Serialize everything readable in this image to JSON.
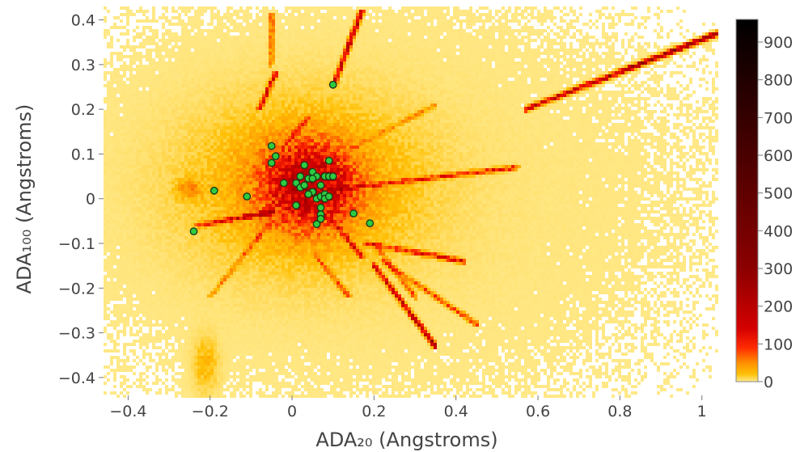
{
  "chart_data": {
    "type": "heatmap",
    "subtype": "2d-density-histogram-with-scatter-overlay",
    "title": "",
    "xlabel": "ADA₂₀ (Angstroms)",
    "ylabel": "ADA₁₀₀ (Angstroms)",
    "xlim": [
      -0.46,
      1.04
    ],
    "ylim": [
      -0.44,
      0.43
    ],
    "x_ticks": [
      -0.4,
      -0.2,
      0,
      0.2,
      0.4,
      0.6,
      0.8,
      1
    ],
    "x_tick_labels": [
      "−0.4",
      "−0.2",
      "0",
      "0.2",
      "0.4",
      "0.6",
      "0.8",
      "1"
    ],
    "y_ticks": [
      -0.4,
      -0.3,
      -0.2,
      -0.1,
      0,
      0.1,
      0.2,
      0.3,
      0.4
    ],
    "y_tick_labels": [
      "−0.4",
      "−0.3",
      "−0.2",
      "−0.1",
      "0",
      "0.1",
      "0.2",
      "0.3",
      "0.4"
    ],
    "grid": false,
    "colorbar": {
      "range": [
        0,
        960
      ],
      "ticks": [
        0,
        100,
        200,
        300,
        400,
        500,
        600,
        700,
        800,
        900
      ],
      "tick_labels": [
        "0",
        "100",
        "200",
        "300",
        "400",
        "500",
        "600",
        "700",
        "800",
        "900"
      ],
      "colorscale": [
        {
          "v": 0,
          "color": "#ffe98a"
        },
        {
          "v": 20,
          "color": "#ffc107"
        },
        {
          "v": 50,
          "color": "#ff8f00"
        },
        {
          "v": 90,
          "color": "#ff2a00"
        },
        {
          "v": 140,
          "color": "#d50000"
        },
        {
          "v": 300,
          "color": "#8b0000"
        },
        {
          "v": 600,
          "color": "#4a0000"
        },
        {
          "v": 960,
          "color": "#000000"
        }
      ]
    },
    "density": {
      "core": {
        "x": 0.04,
        "y": 0.03,
        "sx": 0.07,
        "sy": 0.06,
        "peak": 160
      },
      "halo": {
        "x": 0.03,
        "y": 0.03,
        "sx": 0.18,
        "sy": 0.12,
        "peak": 40
      },
      "background": {
        "x": 0.2,
        "y": 0.0,
        "sx": 0.45,
        "sy": 0.28,
        "peak": 3
      },
      "streaks": [
        {
          "x0": 0.57,
          "y0": 0.2,
          "x1": 1.04,
          "y1": 0.37,
          "v": 260
        },
        {
          "x0": 0.1,
          "y0": 0.25,
          "x1": 0.17,
          "y1": 0.42,
          "v": 220
        },
        {
          "x0": 0.2,
          "y0": -0.15,
          "x1": 0.35,
          "y1": -0.33,
          "v": 200
        },
        {
          "x0": 0.22,
          "y0": -0.14,
          "x1": 0.45,
          "y1": -0.28,
          "v": 90
        },
        {
          "x0": 0.1,
          "y0": 0.02,
          "x1": 0.55,
          "y1": 0.07,
          "v": 110
        },
        {
          "x0": 0.18,
          "y0": -0.1,
          "x1": 0.42,
          "y1": -0.14,
          "v": 140
        },
        {
          "x0": -0.08,
          "y0": 0.2,
          "x1": -0.04,
          "y1": 0.28,
          "v": 150
        },
        {
          "x0": -0.05,
          "y0": 0.3,
          "x1": -0.05,
          "y1": 0.41,
          "v": 90
        },
        {
          "x0": -0.23,
          "y0": -0.06,
          "x1": -0.05,
          "y1": -0.03,
          "v": 150
        },
        {
          "x0": -0.2,
          "y0": -0.22,
          "x1": -0.05,
          "y1": -0.05,
          "v": 60
        },
        {
          "x0": 0.1,
          "y0": -0.05,
          "x1": 0.17,
          "y1": -0.13,
          "v": 120
        },
        {
          "x0": 0.05,
          "y0": -0.12,
          "x1": 0.14,
          "y1": -0.22,
          "v": 70
        },
        {
          "x0": -0.02,
          "y0": 0.12,
          "x1": 0.04,
          "y1": 0.18,
          "v": 60
        },
        {
          "x0": 0.12,
          "y0": 0.1,
          "x1": 0.35,
          "y1": 0.21,
          "v": 40
        },
        {
          "x0": 0.2,
          "y0": -0.1,
          "x1": 0.3,
          "y1": -0.22,
          "v": 70
        }
      ],
      "blobs": [
        {
          "x": -0.21,
          "y": -0.37,
          "sx": 0.02,
          "sy": 0.04,
          "v": 25
        },
        {
          "x": -0.25,
          "y": 0.02,
          "sx": 0.02,
          "sy": 0.015,
          "v": 40
        }
      ]
    },
    "scatter": {
      "marker_color": "#2ecc40",
      "marker_outline": "#1a3d1a",
      "x": [
        0.1,
        -0.05,
        -0.04,
        -0.05,
        0.09,
        0.03,
        0.05,
        0.06,
        0.02,
        0.04,
        -0.02,
        0.01,
        0.02,
        0.03,
        0.05,
        0.07,
        0.08,
        0.09,
        0.1,
        -0.19,
        -0.11,
        0.06,
        0.07,
        0.08,
        0.08,
        0.09,
        0.01,
        0.07,
        0.07,
        0.07,
        0.15,
        0.19,
        -0.24,
        0.06,
        0.04,
        0.05
      ],
      "y": [
        0.255,
        0.118,
        0.095,
        0.08,
        0.085,
        0.075,
        0.06,
        0.05,
        0.05,
        0.045,
        0.035,
        0.035,
        0.025,
        0.03,
        0.015,
        0.03,
        0.05,
        0.05,
        0.05,
        0.018,
        0.005,
        0.0,
        0.005,
        0.01,
        0.0,
        0.005,
        -0.015,
        -0.02,
        -0.035,
        -0.045,
        -0.033,
        -0.055,
        -0.073,
        -0.057,
        0.01,
        0.045
      ]
    }
  }
}
